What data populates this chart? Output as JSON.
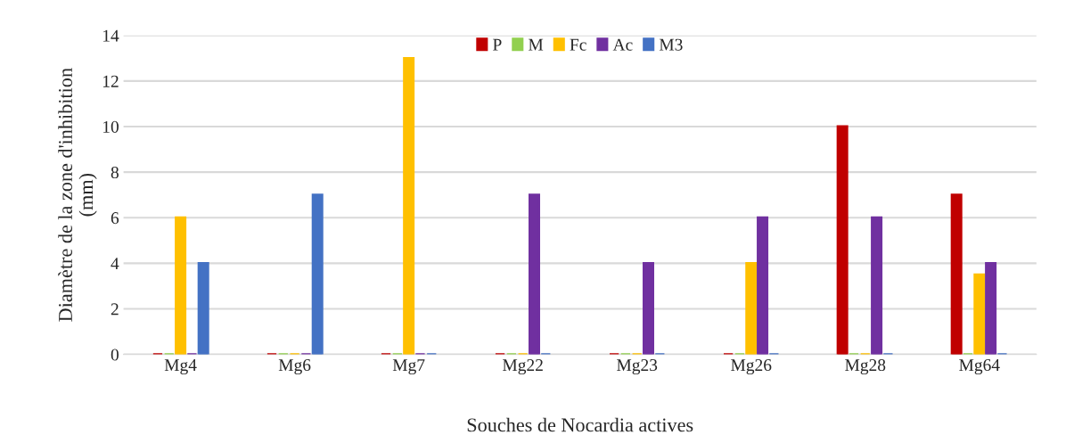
{
  "chart_data": {
    "type": "bar",
    "xlabel": "Souches de Nocardia actives",
    "ylabel": "Diamètre de la zone d'inhibition\n(mm)",
    "categories": [
      "Mg4",
      "Mg6",
      "Mg7",
      "Mg22",
      "Mg23",
      "Mg26",
      "Mg28",
      "Mg64"
    ],
    "series": [
      {
        "name": "P",
        "color": "#c00000",
        "values": [
          0,
          0,
          0,
          0,
          0,
          0,
          10,
          7
        ]
      },
      {
        "name": "M",
        "color": "#92d050",
        "values": [
          0,
          0,
          0,
          0,
          0,
          0,
          0,
          0
        ]
      },
      {
        "name": "Fc",
        "color": "#ffc000",
        "values": [
          6,
          0,
          13,
          0,
          0,
          4,
          0,
          3.5
        ]
      },
      {
        "name": "Ac",
        "color": "#7030a0",
        "values": [
          0,
          0,
          0,
          7,
          4,
          6,
          6,
          4
        ]
      },
      {
        "name": "M3",
        "color": "#4472c4",
        "values": [
          4,
          7,
          0,
          0,
          0,
          0,
          0,
          0
        ]
      }
    ],
    "ylim": [
      0,
      14
    ],
    "yticks": [
      0,
      2,
      4,
      6,
      8,
      10,
      12,
      14
    ],
    "grid": "y",
    "legend": "top"
  }
}
